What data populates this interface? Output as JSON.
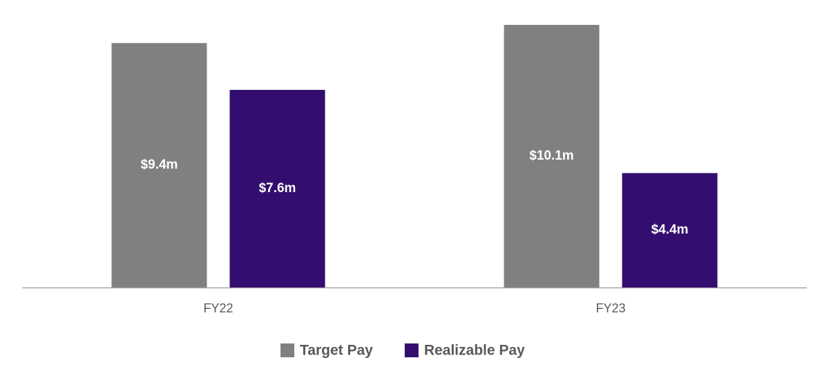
{
  "chart_data": {
    "type": "bar",
    "categories": [
      "FY22",
      "FY23"
    ],
    "series": [
      {
        "name": "Target Pay",
        "color": "#808080",
        "values": [
          9.4,
          10.1
        ],
        "value_labels": [
          "$9.4m",
          "$10.1m"
        ]
      },
      {
        "name": "Realizable Pay",
        "color": "#330e6f",
        "values": [
          7.6,
          4.4
        ],
        "value_labels": [
          "$7.6m",
          "$4.4m"
        ]
      }
    ]
  }
}
